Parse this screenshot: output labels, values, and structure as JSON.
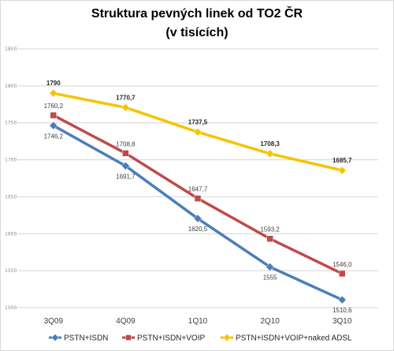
{
  "chart_data": {
    "type": "line",
    "title": "Struktura pevných linek  od TO2 ČR",
    "subtitle": "(v tisících)",
    "categories": [
      "3Q09",
      "4Q09",
      "1Q10",
      "2Q10",
      "3Q10"
    ],
    "ylim": [
      1500,
      1850
    ],
    "yticks": [
      1500,
      1550,
      1600,
      1650,
      1700,
      1750,
      1800,
      1850
    ],
    "grid": true,
    "legend_position": "bottom",
    "series": [
      {
        "name": "PSTN+ISDN",
        "color": "#4a7ebb",
        "marker": "diamond",
        "values": [
          1746.2,
          1691.7,
          1620.5,
          1555,
          1510.6
        ],
        "labels": [
          "1746,2",
          "1691,7",
          "1620,5",
          "1555",
          "1510,6"
        ]
      },
      {
        "name": "PSTN+ISDN+VOIP",
        "color": "#be4b48",
        "marker": "square",
        "values": [
          1760.2,
          1708.8,
          1647.7,
          1593.2,
          1546.0
        ],
        "labels": [
          "1760,2",
          "1708,8",
          "1647,7",
          "1593,2",
          "1546,0"
        ]
      },
      {
        "name": "PSTN+ISDN+VOIP+naked ADSL",
        "color": "#f5c400",
        "marker": "diamond",
        "values": [
          1790,
          1770.7,
          1737.5,
          1708.3,
          1685.7
        ],
        "labels": [
          "1790",
          "1770,7",
          "1737,5",
          "1708,3",
          "1685,7"
        ]
      }
    ]
  }
}
